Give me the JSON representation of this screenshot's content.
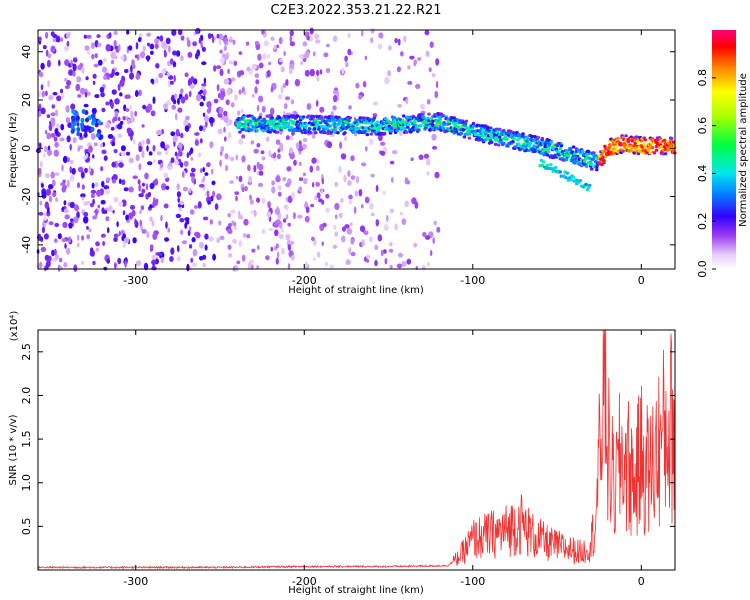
{
  "title": "C2E3.2022.353.21.22.R21",
  "chart_data": [
    {
      "type": "heatmap",
      "xlabel": "Height of straight line (km)",
      "ylabel": "Frequency (Hz)",
      "xlim": [
        -358,
        20
      ],
      "ylim": [
        -50,
        49
      ],
      "xticks": [
        -300,
        -200,
        -100,
        0
      ],
      "yticks": [
        -40,
        -20,
        0,
        20,
        40
      ],
      "colorbar": {
        "label": "Normalized spectral amplitude",
        "range": [
          0.0,
          1.0
        ],
        "ticks": [
          0.0,
          0.2,
          0.4,
          0.6,
          0.8
        ]
      },
      "ridge": [
        {
          "x": -240,
          "y": 10
        },
        {
          "x": -200,
          "y": 10
        },
        {
          "x": -160,
          "y": 9
        },
        {
          "x": -120,
          "y": 11
        },
        {
          "x": -100,
          "y": 7
        },
        {
          "x": -80,
          "y": 4
        },
        {
          "x": -60,
          "y": 1
        },
        {
          "x": -40,
          "y": -3
        },
        {
          "x": -25,
          "y": -6
        },
        {
          "x": -20,
          "y": 0
        },
        {
          "x": -10,
          "y": 2
        },
        {
          "x": 0,
          "y": 1
        },
        {
          "x": 20,
          "y": 1
        }
      ]
    },
    {
      "type": "line",
      "xlabel": "Height of straight line (km)",
      "ylabel": "SNR (10 * v/v)",
      "multiplier": "(x10⁴)",
      "xlim": [
        -358,
        20
      ],
      "ylim": [
        0,
        2.75
      ],
      "xticks": [
        -300,
        -200,
        -100,
        0
      ],
      "yticks": [
        0.5,
        1.0,
        1.5,
        2.0,
        2.5
      ],
      "color": "#ee3333",
      "series": [
        {
          "x": [
            -358,
            -300,
            -250,
            -200,
            -150,
            -115,
            -108,
            -100,
            -90,
            -80,
            -72,
            -65,
            -55,
            -45,
            -35,
            -30,
            -27,
            -24,
            -22,
            -20,
            -16,
            -12,
            -8,
            -4,
            0,
            5,
            10,
            15,
            20
          ],
          "y": [
            0.03,
            0.03,
            0.03,
            0.04,
            0.04,
            0.05,
            0.15,
            0.35,
            0.4,
            0.45,
            0.55,
            0.4,
            0.3,
            0.25,
            0.2,
            0.3,
            0.6,
            1.5,
            2.8,
            1.4,
            0.9,
            1.3,
            1.2,
            1.0,
            1.3,
            1.1,
            1.4,
            1.6,
            1.7
          ]
        }
      ]
    }
  ]
}
